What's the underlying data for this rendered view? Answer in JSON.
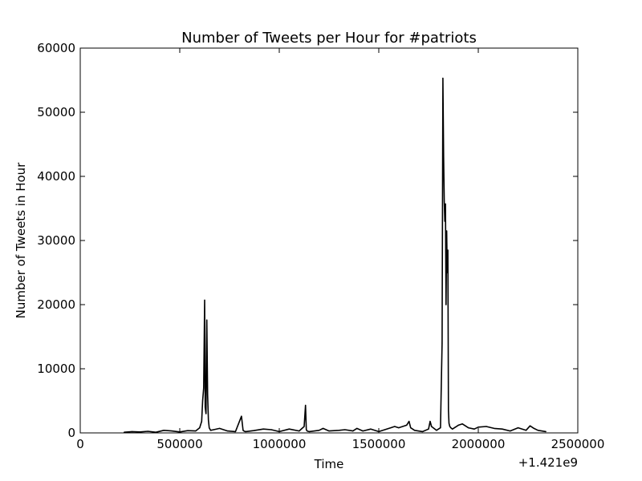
{
  "chart_data": {
    "type": "line",
    "title": "Number of Tweets per Hour for #patriots",
    "xlabel": "Time",
    "ylabel": "Number of Tweets in Hour",
    "offset_label": "+1.421e9",
    "xlim": [
      0,
      2500000
    ],
    "ylim": [
      0,
      60000
    ],
    "grid": false,
    "line_color": "#000000",
    "xticks": [
      {
        "value": 0,
        "label": "0"
      },
      {
        "value": 500000,
        "label": "500000"
      },
      {
        "value": 1000000,
        "label": "1000000"
      },
      {
        "value": 1500000,
        "label": "1500000"
      },
      {
        "value": 2000000,
        "label": "2000000"
      },
      {
        "value": 2500000,
        "label": "2500000"
      }
    ],
    "yticks": [
      {
        "value": 0,
        "label": "0"
      },
      {
        "value": 10000,
        "label": "10000"
      },
      {
        "value": 20000,
        "label": "20000"
      },
      {
        "value": 30000,
        "label": "30000"
      },
      {
        "value": 40000,
        "label": "40000"
      },
      {
        "value": 50000,
        "label": "50000"
      },
      {
        "value": 60000,
        "label": "60000"
      }
    ],
    "series": [
      {
        "x": [
          220000,
          260000,
          300000,
          340000,
          380000,
          420000,
          460000,
          500000,
          540000,
          580000,
          600000,
          610000,
          615000,
          620000,
          625000,
          628000,
          632000,
          636000,
          640000,
          644000,
          648000,
          655000,
          670000,
          700000,
          740000,
          780000,
          810000,
          818000,
          822000,
          830000,
          870000,
          920000,
          960000,
          1000000,
          1050000,
          1100000,
          1125000,
          1132000,
          1136000,
          1140000,
          1150000,
          1200000,
          1220000,
          1250000,
          1300000,
          1330000,
          1370000,
          1390000,
          1420000,
          1460000,
          1500000,
          1560000,
          1580000,
          1600000,
          1640000,
          1652000,
          1660000,
          1680000,
          1720000,
          1750000,
          1758000,
          1765000,
          1790000,
          1810000,
          1818000,
          1822000,
          1826000,
          1829000,
          1832000,
          1835000,
          1838000,
          1841000,
          1844000,
          1847000,
          1850000,
          1853000,
          1857000,
          1862000,
          1870000,
          1900000,
          1920000,
          1950000,
          1980000,
          2000000,
          2040000,
          2080000,
          2120000,
          2160000,
          2200000,
          2240000,
          2260000,
          2280000,
          2300000,
          2340000
        ],
        "y": [
          100,
          200,
          150,
          250,
          100,
          400,
          300,
          150,
          350,
          300,
          800,
          1800,
          5000,
          7000,
          20700,
          4000,
          3000,
          17600,
          6000,
          2000,
          800,
          400,
          500,
          700,
          300,
          200,
          2600,
          400,
          300,
          200,
          350,
          600,
          500,
          200,
          600,
          300,
          1000,
          4300,
          500,
          300,
          200,
          400,
          700,
          300,
          400,
          500,
          300,
          700,
          300,
          600,
          200,
          800,
          1000,
          800,
          1200,
          1800,
          800,
          400,
          200,
          600,
          1800,
          1000,
          400,
          800,
          14000,
          55300,
          43000,
          36000,
          33000,
          35700,
          20000,
          31500,
          25000,
          28500,
          3500,
          1500,
          1000,
          800,
          600,
          1200,
          1400,
          800,
          600,
          900,
          1000,
          700,
          600,
          300,
          800,
          400,
          1100,
          700,
          400,
          200
        ]
      }
    ]
  }
}
